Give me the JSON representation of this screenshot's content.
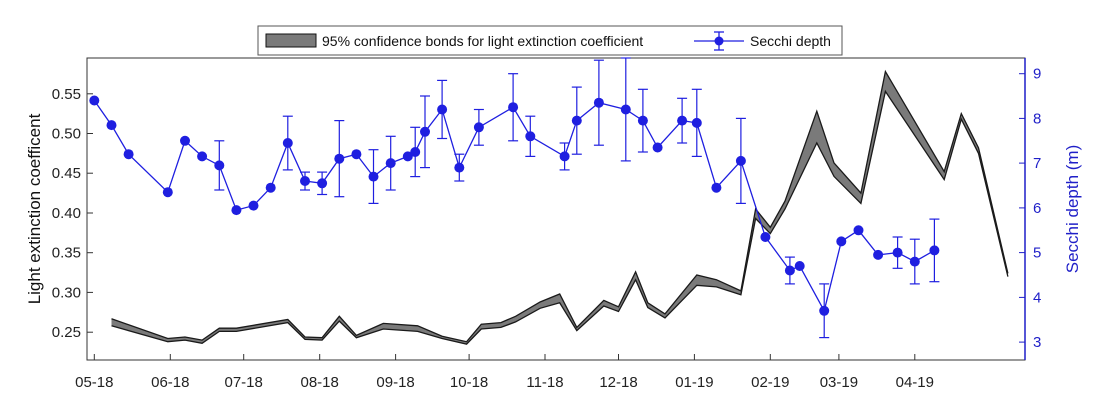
{
  "chart_data": {
    "type": "line",
    "title": "",
    "x_tick_labels": [
      "05-18",
      "06-18",
      "07-18",
      "08-18",
      "09-18",
      "10-18",
      "11-18",
      "12-18",
      "01-19",
      "02-19",
      "03-19",
      "04-19"
    ],
    "left_axis": {
      "label": "Light extinction coefficent",
      "ylim": [
        0.215,
        0.595
      ],
      "ticks": [
        "0.25",
        "0.30",
        "0.35",
        "0.40",
        "0.45",
        "0.50",
        "0.55"
      ],
      "color": "#000000"
    },
    "right_axis": {
      "label": "Secchi depth (m)",
      "ylim": [
        2.6,
        9.35
      ],
      "ticks": [
        "3",
        "4",
        "5",
        "6",
        "7",
        "8",
        "9"
      ],
      "color": "#1f1fc8"
    },
    "legend": {
      "position": "top-center",
      "entries": [
        "95% confidence bonds for light extinction coefficient",
        "Secchi depth"
      ]
    },
    "series": [
      {
        "name": "95% confidence bonds for light extinction coefficient",
        "kind": "band",
        "axis": "left",
        "color": "#555555",
        "points": [
          {
            "x": "2018-05-08",
            "lo": 0.258,
            "hi": 0.267
          },
          {
            "x": "2018-05-31",
            "lo": 0.238,
            "hi": 0.242
          },
          {
            "x": "2018-06-07",
            "lo": 0.24,
            "hi": 0.244
          },
          {
            "x": "2018-06-14",
            "lo": 0.236,
            "hi": 0.24
          },
          {
            "x": "2018-06-21",
            "lo": 0.251,
            "hi": 0.255
          },
          {
            "x": "2018-06-28",
            "lo": 0.251,
            "hi": 0.255
          },
          {
            "x": "2018-07-19",
            "lo": 0.262,
            "hi": 0.266
          },
          {
            "x": "2018-07-26",
            "lo": 0.241,
            "hi": 0.244
          },
          {
            "x": "2018-08-02",
            "lo": 0.24,
            "hi": 0.243
          },
          {
            "x": "2018-08-09",
            "lo": 0.264,
            "hi": 0.27
          },
          {
            "x": "2018-08-16",
            "lo": 0.243,
            "hi": 0.246
          },
          {
            "x": "2018-08-27",
            "lo": 0.254,
            "hi": 0.261
          },
          {
            "x": "2018-09-10",
            "lo": 0.251,
            "hi": 0.258
          },
          {
            "x": "2018-09-20",
            "lo": 0.242,
            "hi": 0.245
          },
          {
            "x": "2018-09-30",
            "lo": 0.235,
            "hi": 0.238
          },
          {
            "x": "2018-10-06",
            "lo": 0.254,
            "hi": 0.26
          },
          {
            "x": "2018-10-14",
            "lo": 0.256,
            "hi": 0.262
          },
          {
            "x": "2018-10-20",
            "lo": 0.263,
            "hi": 0.27
          },
          {
            "x": "2018-10-30",
            "lo": 0.28,
            "hi": 0.288
          },
          {
            "x": "2018-11-07",
            "lo": 0.287,
            "hi": 0.298
          },
          {
            "x": "2018-11-14",
            "lo": 0.252,
            "hi": 0.256
          },
          {
            "x": "2018-11-25",
            "lo": 0.283,
            "hi": 0.29
          },
          {
            "x": "2018-12-01",
            "lo": 0.276,
            "hi": 0.282
          },
          {
            "x": "2018-12-08",
            "lo": 0.316,
            "hi": 0.326
          },
          {
            "x": "2018-12-13",
            "lo": 0.281,
            "hi": 0.287
          },
          {
            "x": "2018-12-20",
            "lo": 0.268,
            "hi": 0.273
          },
          {
            "x": "2019-01-02",
            "lo": 0.309,
            "hi": 0.322
          },
          {
            "x": "2019-01-10",
            "lo": 0.307,
            "hi": 0.316
          },
          {
            "x": "2019-01-20",
            "lo": 0.297,
            "hi": 0.302
          },
          {
            "x": "2019-01-26",
            "lo": 0.393,
            "hi": 0.405
          },
          {
            "x": "2019-02-01",
            "lo": 0.374,
            "hi": 0.382
          },
          {
            "x": "2019-02-07",
            "lo": 0.405,
            "hi": 0.415
          },
          {
            "x": "2019-02-20",
            "lo": 0.488,
            "hi": 0.528
          },
          {
            "x": "2019-02-27",
            "lo": 0.446,
            "hi": 0.463
          },
          {
            "x": "2019-03-10",
            "lo": 0.412,
            "hi": 0.425
          },
          {
            "x": "2019-03-20",
            "lo": 0.553,
            "hi": 0.578
          },
          {
            "x": "2019-04-13",
            "lo": 0.442,
            "hi": 0.452
          },
          {
            "x": "2019-04-20",
            "lo": 0.518,
            "hi": 0.525
          },
          {
            "x": "2019-04-27",
            "lo": 0.475,
            "hi": 0.482
          },
          {
            "x": "2019-05-09",
            "lo": 0.32,
            "hi": 0.324
          }
        ]
      },
      {
        "name": "Secchi depth",
        "kind": "line-errorbar",
        "axis": "right",
        "color": "#1f1fe0",
        "points": [
          {
            "x": "2018-05-01",
            "y": 8.4
          },
          {
            "x": "2018-05-08",
            "y": 7.85
          },
          {
            "x": "2018-05-15",
            "y": 7.2
          },
          {
            "x": "2018-05-31",
            "y": 6.35
          },
          {
            "x": "2018-06-07",
            "y": 7.5
          },
          {
            "x": "2018-06-14",
            "y": 7.15
          },
          {
            "x": "2018-06-21",
            "y": 6.95,
            "err": 0.55
          },
          {
            "x": "2018-06-28",
            "y": 5.95
          },
          {
            "x": "2018-07-05",
            "y": 6.05
          },
          {
            "x": "2018-07-12",
            "y": 6.45
          },
          {
            "x": "2018-07-19",
            "y": 7.45,
            "err": 0.6
          },
          {
            "x": "2018-07-26",
            "y": 6.6,
            "err": 0.2
          },
          {
            "x": "2018-08-02",
            "y": 6.55,
            "err": 0.25
          },
          {
            "x": "2018-08-09",
            "y": 7.1,
            "err": 0.85
          },
          {
            "x": "2018-08-16",
            "y": 7.2
          },
          {
            "x": "2018-08-23",
            "y": 6.7,
            "err": 0.6
          },
          {
            "x": "2018-08-30",
            "y": 7.0,
            "err": 0.6
          },
          {
            "x": "2018-09-06",
            "y": 7.15
          },
          {
            "x": "2018-09-09",
            "y": 7.25,
            "err": 0.55
          },
          {
            "x": "2018-09-13",
            "y": 7.7,
            "err": 0.8
          },
          {
            "x": "2018-09-20",
            "y": 8.2,
            "err": 0.65
          },
          {
            "x": "2018-09-27",
            "y": 6.9,
            "err": 0.3
          },
          {
            "x": "2018-10-05",
            "y": 7.8,
            "err": 0.4
          },
          {
            "x": "2018-10-19",
            "y": 8.25,
            "err": 0.75
          },
          {
            "x": "2018-10-26",
            "y": 7.6,
            "err": 0.45
          },
          {
            "x": "2018-11-09",
            "y": 7.15,
            "err": 0.3
          },
          {
            "x": "2018-11-14",
            "y": 7.95,
            "err": 0.75
          },
          {
            "x": "2018-11-23",
            "y": 8.35,
            "err": 0.95
          },
          {
            "x": "2018-12-04",
            "y": 8.2,
            "err": 1.15
          },
          {
            "x": "2018-12-11",
            "y": 7.95,
            "err": 0.7
          },
          {
            "x": "2018-12-17",
            "y": 7.35
          },
          {
            "x": "2018-12-27",
            "y": 7.95,
            "err": 0.5
          },
          {
            "x": "2019-01-02",
            "y": 7.9,
            "err": 0.75
          },
          {
            "x": "2019-01-10",
            "y": 6.45
          },
          {
            "x": "2019-01-20",
            "y": 7.05,
            "err": 0.95
          },
          {
            "x": "2019-01-30",
            "y": 5.35
          },
          {
            "x": "2019-02-09",
            "y": 4.6,
            "err": 0.3
          },
          {
            "x": "2019-02-13",
            "y": 4.7
          },
          {
            "x": "2019-02-23",
            "y": 3.7,
            "err": 0.6
          },
          {
            "x": "2019-03-02",
            "y": 5.25
          },
          {
            "x": "2019-03-09",
            "y": 5.5
          },
          {
            "x": "2019-03-17",
            "y": 4.95
          },
          {
            "x": "2019-03-25",
            "y": 5.0,
            "err": 0.35
          },
          {
            "x": "2019-04-01",
            "y": 4.8,
            "err": 0.5
          },
          {
            "x": "2019-04-09",
            "y": 5.05,
            "err": 0.7
          }
        ]
      }
    ]
  }
}
